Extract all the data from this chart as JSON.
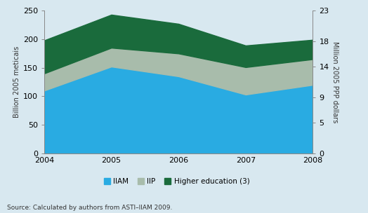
{
  "years": [
    2004,
    2005,
    2006,
    2007,
    2008
  ],
  "iiam": [
    110,
    152,
    135,
    103,
    120
  ],
  "iip": [
    30,
    33,
    40,
    48,
    45
  ],
  "higher_ed": [
    58,
    58,
    52,
    38,
    34
  ],
  "iiam_color": "#29ABE2",
  "iip_color": "#A8BCAB",
  "higher_ed_color": "#1A6B3C",
  "bg_color": "#D8E8F0",
  "ylabel_left": "Billion 2005 meticais",
  "ylabel_right": "Million 2005 PPP dollars",
  "ylim_left": [
    0,
    250
  ],
  "ylim_right": [
    0,
    23
  ],
  "yticks_left": [
    0,
    50,
    100,
    150,
    200,
    250
  ],
  "yticks_right": [
    0,
    5,
    9,
    14,
    18,
    23
  ],
  "legend_labels": [
    "IIAM",
    "IIP",
    "Higher education (3)"
  ],
  "source_text": "Source: Calculated by authors from ASTI–IIAM 2009."
}
